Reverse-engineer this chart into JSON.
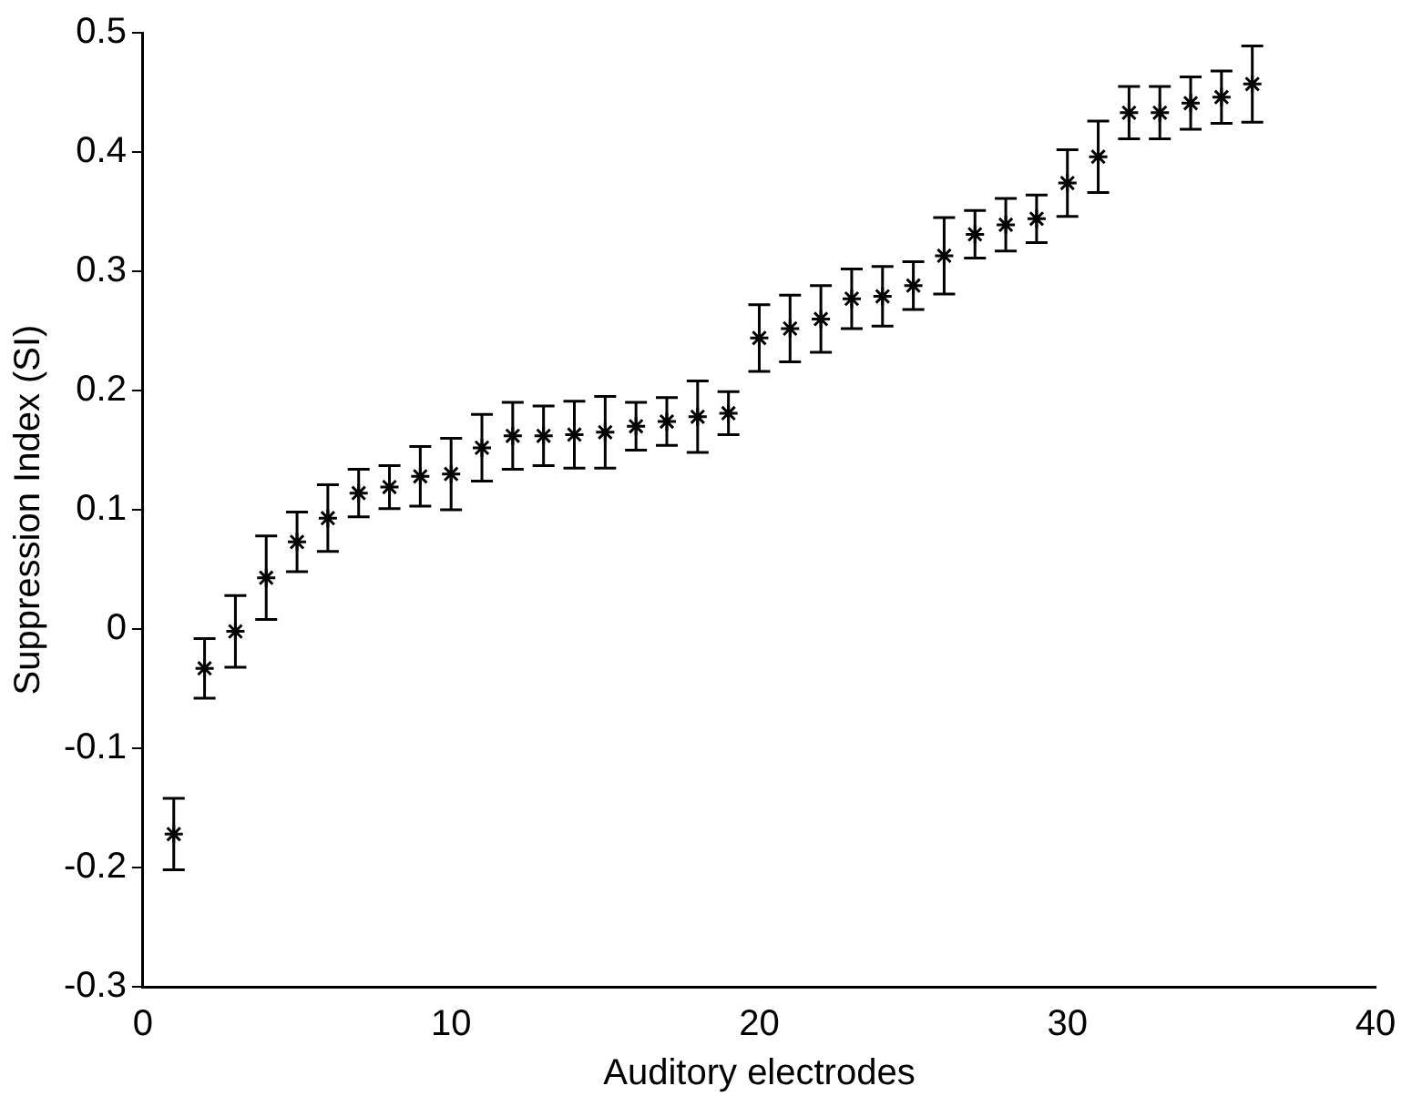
{
  "chart_data": {
    "type": "scatter",
    "xlabel": "Auditory electrodes",
    "ylabel": "Suppression Index (SI)",
    "x": [
      1,
      2,
      3,
      4,
      5,
      6,
      7,
      8,
      9,
      10,
      11,
      12,
      13,
      14,
      15,
      16,
      17,
      18,
      19,
      20,
      21,
      22,
      23,
      24,
      25,
      26,
      27,
      28,
      29,
      30,
      31,
      32,
      33,
      34,
      35,
      36
    ],
    "values": [
      -0.172,
      -0.033,
      -0.002,
      0.043,
      0.073,
      0.093,
      0.114,
      0.119,
      0.128,
      0.13,
      0.152,
      0.162,
      0.162,
      0.163,
      0.165,
      0.17,
      0.174,
      0.178,
      0.181,
      0.244,
      0.252,
      0.26,
      0.277,
      0.279,
      0.288,
      0.313,
      0.331,
      0.339,
      0.344,
      0.374,
      0.396,
      0.433,
      0.433,
      0.441,
      0.446,
      0.457
    ],
    "errors": [
      0.03,
      0.025,
      0.03,
      0.035,
      0.025,
      0.028,
      0.02,
      0.018,
      0.025,
      0.03,
      0.028,
      0.028,
      0.025,
      0.028,
      0.03,
      0.02,
      0.02,
      0.03,
      0.018,
      0.028,
      0.028,
      0.028,
      0.025,
      0.025,
      0.02,
      0.032,
      0.02,
      0.022,
      0.02,
      0.028,
      0.03,
      0.022,
      0.022,
      0.022,
      0.022,
      0.032
    ],
    "color": "#000000",
    "marker": "cross",
    "xlim": [
      0,
      40
    ],
    "xticks": [
      0,
      10,
      20,
      30,
      40
    ],
    "ylim": [
      -0.3,
      0.5
    ],
    "yticks": [
      -0.3,
      -0.2,
      -0.1,
      0,
      0.1,
      0.2,
      0.3,
      0.4,
      0.5
    ],
    "grid": false,
    "legend": false
  }
}
